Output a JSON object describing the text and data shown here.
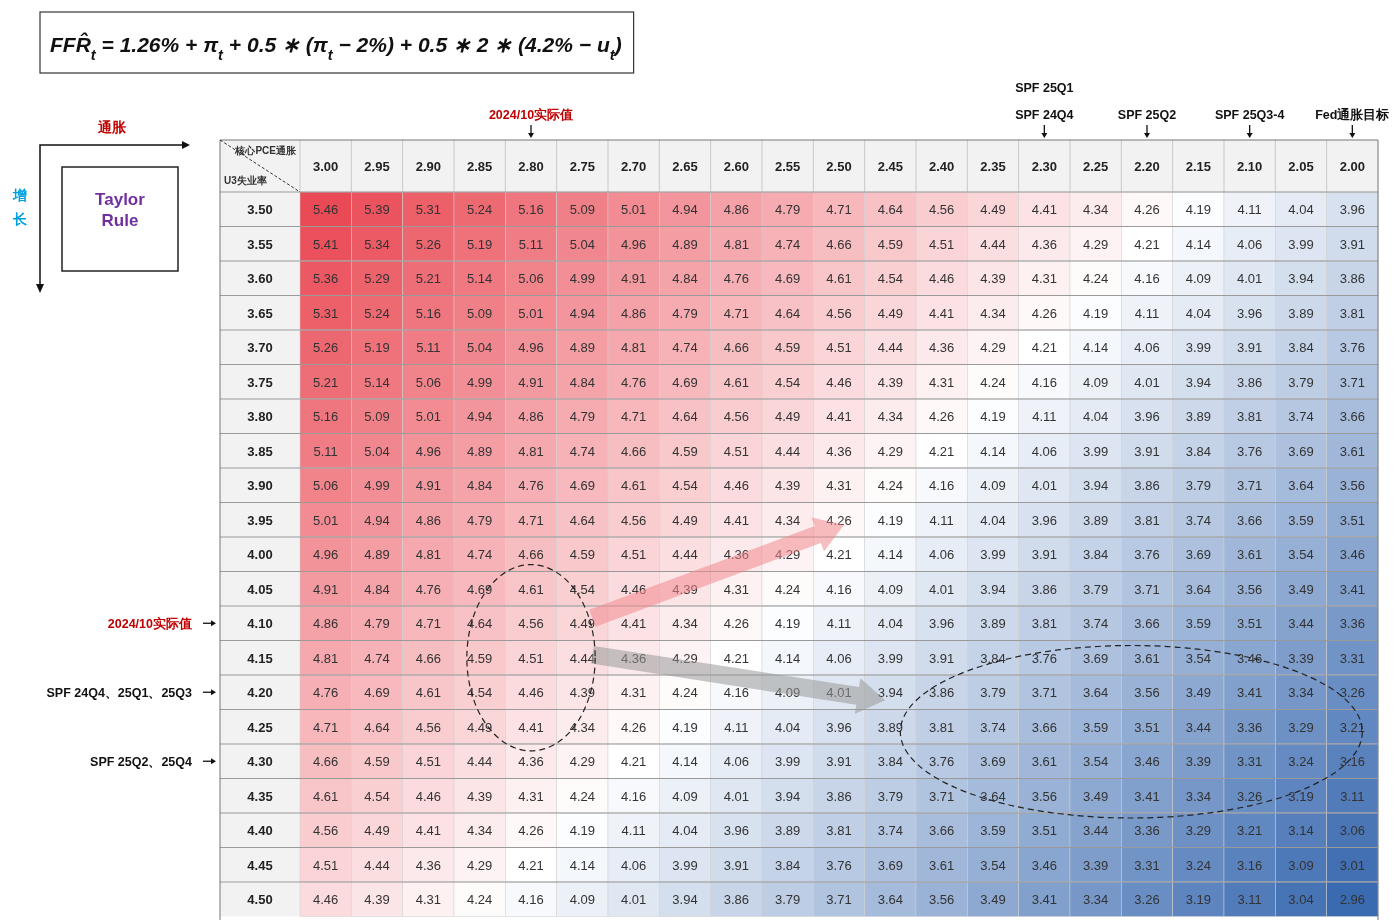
{
  "chart_data": {
    "type": "heatmap",
    "data_labels": true,
    "xlabel": "核心PCE通胀",
    "ylabel": "U3失业率",
    "categories": [
      "3.00",
      "2.95",
      "2.90",
      "2.85",
      "2.80",
      "2.75",
      "2.70",
      "2.65",
      "2.60",
      "2.55",
      "2.50",
      "2.45",
      "2.40",
      "2.35",
      "2.30",
      "2.25",
      "2.20",
      "2.15",
      "2.10",
      "2.05",
      "2.00"
    ],
    "y_categories": [
      "3.50",
      "3.55",
      "3.60",
      "3.65",
      "3.70",
      "3.75",
      "3.80",
      "3.85",
      "3.90",
      "3.95",
      "4.00",
      "4.05",
      "4.10",
      "4.15",
      "4.20",
      "4.25",
      "4.30",
      "4.35",
      "4.40",
      "4.45",
      "4.50"
    ],
    "cells": [
      [
        5.46,
        5.39,
        5.31,
        5.24,
        5.16,
        5.09,
        5.01,
        4.94,
        4.86,
        4.79,
        4.71,
        4.64,
        4.56,
        4.49,
        4.41,
        4.34,
        4.26,
        4.19,
        4.11,
        4.04,
        3.96
      ],
      [
        5.41,
        5.34,
        5.26,
        5.19,
        5.11,
        5.04,
        4.96,
        4.89,
        4.81,
        4.74,
        4.66,
        4.59,
        4.51,
        4.44,
        4.36,
        4.29,
        4.21,
        4.14,
        4.06,
        3.99,
        3.91
      ],
      [
        5.36,
        5.29,
        5.21,
        5.14,
        5.06,
        4.99,
        4.91,
        4.84,
        4.76,
        4.69,
        4.61,
        4.54,
        4.46,
        4.39,
        4.31,
        4.24,
        4.16,
        4.09,
        4.01,
        3.94,
        3.86
      ],
      [
        5.31,
        5.24,
        5.16,
        5.09,
        5.01,
        4.94,
        4.86,
        4.79,
        4.71,
        4.64,
        4.56,
        4.49,
        4.41,
        4.34,
        4.26,
        4.19,
        4.11,
        4.04,
        3.96,
        3.89,
        3.81
      ],
      [
        5.26,
        5.19,
        5.11,
        5.04,
        4.96,
        4.89,
        4.81,
        4.74,
        4.66,
        4.59,
        4.51,
        4.44,
        4.36,
        4.29,
        4.21,
        4.14,
        4.06,
        3.99,
        3.91,
        3.84,
        3.76
      ],
      [
        5.21,
        5.14,
        5.06,
        4.99,
        4.91,
        4.84,
        4.76,
        4.69,
        4.61,
        4.54,
        4.46,
        4.39,
        4.31,
        4.24,
        4.16,
        4.09,
        4.01,
        3.94,
        3.86,
        3.79,
        3.71
      ],
      [
        5.16,
        5.09,
        5.01,
        4.94,
        4.86,
        4.79,
        4.71,
        4.64,
        4.56,
        4.49,
        4.41,
        4.34,
        4.26,
        4.19,
        4.11,
        4.04,
        3.96,
        3.89,
        3.81,
        3.74,
        3.66
      ],
      [
        5.11,
        5.04,
        4.96,
        4.89,
        4.81,
        4.74,
        4.66,
        4.59,
        4.51,
        4.44,
        4.36,
        4.29,
        4.21,
        4.14,
        4.06,
        3.99,
        3.91,
        3.84,
        3.76,
        3.69,
        3.61
      ],
      [
        5.06,
        4.99,
        4.91,
        4.84,
        4.76,
        4.69,
        4.61,
        4.54,
        4.46,
        4.39,
        4.31,
        4.24,
        4.16,
        4.09,
        4.01,
        3.94,
        3.86,
        3.79,
        3.71,
        3.64,
        3.56
      ],
      [
        5.01,
        4.94,
        4.86,
        4.79,
        4.71,
        4.64,
        4.56,
        4.49,
        4.41,
        4.34,
        4.26,
        4.19,
        4.11,
        4.04,
        3.96,
        3.89,
        3.81,
        3.74,
        3.66,
        3.59,
        3.51
      ],
      [
        4.96,
        4.89,
        4.81,
        4.74,
        4.66,
        4.59,
        4.51,
        4.44,
        4.36,
        4.29,
        4.21,
        4.14,
        4.06,
        3.99,
        3.91,
        3.84,
        3.76,
        3.69,
        3.61,
        3.54,
        3.46
      ],
      [
        4.91,
        4.84,
        4.76,
        4.69,
        4.61,
        4.54,
        4.46,
        4.39,
        4.31,
        4.24,
        4.16,
        4.09,
        4.01,
        3.94,
        3.86,
        3.79,
        3.71,
        3.64,
        3.56,
        3.49,
        3.41
      ],
      [
        4.86,
        4.79,
        4.71,
        4.64,
        4.56,
        4.49,
        4.41,
        4.34,
        4.26,
        4.19,
        4.11,
        4.04,
        3.96,
        3.89,
        3.81,
        3.74,
        3.66,
        3.59,
        3.51,
        3.44,
        3.36
      ],
      [
        4.81,
        4.74,
        4.66,
        4.59,
        4.51,
        4.44,
        4.36,
        4.29,
        4.21,
        4.14,
        4.06,
        3.99,
        3.91,
        3.84,
        3.76,
        3.69,
        3.61,
        3.54,
        3.46,
        3.39,
        3.31
      ],
      [
        4.76,
        4.69,
        4.61,
        4.54,
        4.46,
        4.39,
        4.31,
        4.24,
        4.16,
        4.09,
        4.01,
        3.94,
        3.86,
        3.79,
        3.71,
        3.64,
        3.56,
        3.49,
        3.41,
        3.34,
        3.26
      ],
      [
        4.71,
        4.64,
        4.56,
        4.49,
        4.41,
        4.34,
        4.26,
        4.19,
        4.11,
        4.04,
        3.96,
        3.89,
        3.81,
        3.74,
        3.66,
        3.59,
        3.51,
        3.44,
        3.36,
        3.29,
        3.21
      ],
      [
        4.66,
        4.59,
        4.51,
        4.44,
        4.36,
        4.29,
        4.21,
        4.14,
        4.06,
        3.99,
        3.91,
        3.84,
        3.76,
        3.69,
        3.61,
        3.54,
        3.46,
        3.39,
        3.31,
        3.24,
        3.16
      ],
      [
        4.61,
        4.54,
        4.46,
        4.39,
        4.31,
        4.24,
        4.16,
        4.09,
        4.01,
        3.94,
        3.86,
        3.79,
        3.71,
        3.64,
        3.56,
        3.49,
        3.41,
        3.34,
        3.26,
        3.19,
        3.11
      ],
      [
        4.56,
        4.49,
        4.41,
        4.34,
        4.26,
        4.19,
        4.11,
        4.04,
        3.96,
        3.89,
        3.81,
        3.74,
        3.66,
        3.59,
        3.51,
        3.44,
        3.36,
        3.29,
        3.21,
        3.14,
        3.06
      ],
      [
        4.51,
        4.44,
        4.36,
        4.29,
        4.21,
        4.14,
        4.06,
        3.99,
        3.91,
        3.84,
        3.76,
        3.69,
        3.61,
        3.54,
        3.46,
        3.39,
        3.31,
        3.24,
        3.16,
        3.09,
        3.01
      ],
      [
        4.46,
        4.39,
        4.31,
        4.24,
        4.16,
        4.09,
        4.01,
        3.94,
        3.86,
        3.79,
        3.71,
        3.64,
        3.56,
        3.49,
        3.41,
        3.34,
        3.26,
        3.19,
        3.11,
        3.04,
        2.96
      ]
    ],
    "annotations": [
      "FFR̂$_{t}$ = 1.26% + π$_{t}$ + 0.5 ∗ (π$_{t}$ − 2%) + 0.5 ∗ 2 ∗ (4.2% − u$_{t}$)",
      "通胀",
      "增长",
      "Taylor Rule",
      "2024/10实际值",
      "SPF 24Q4",
      "SPF 25Q1",
      "SPF 25Q2",
      "SPF 25Q3-4",
      "Fed通胀目标",
      "2024/10实际值",
      "SPF 24Q4、25Q1、25Q3",
      "SPF 25Q2、25Q4"
    ]
  }
}
